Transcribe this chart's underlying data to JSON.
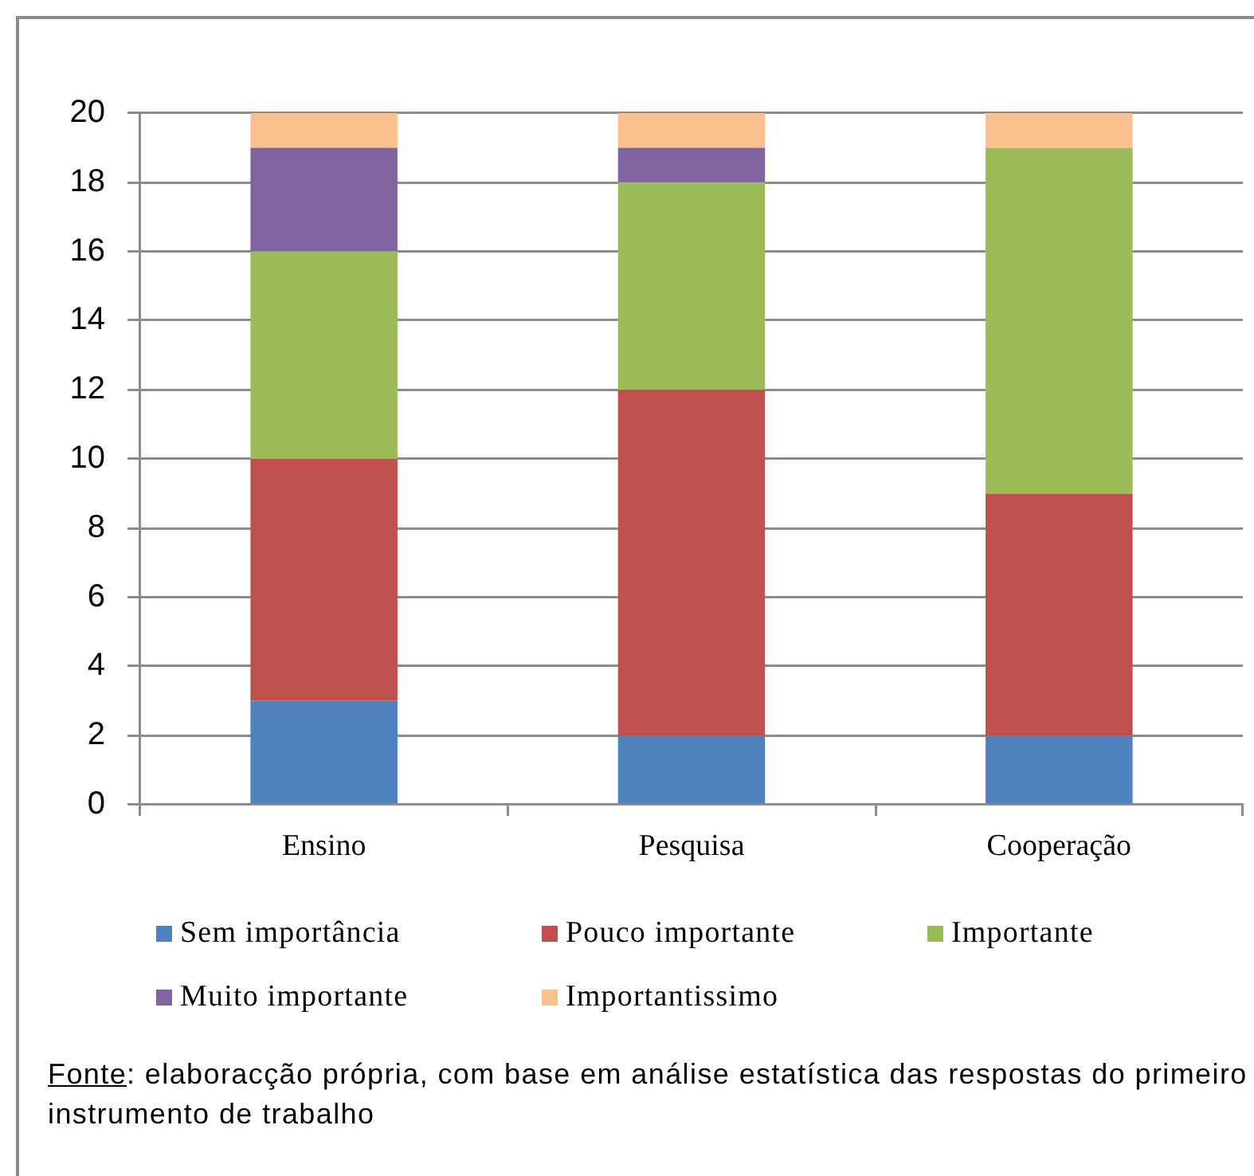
{
  "chart_data": {
    "type": "bar",
    "stacked": true,
    "categories": [
      "Ensino",
      "Pesquisa",
      "Cooperação"
    ],
    "series": [
      {
        "name": "Sem importância",
        "color": "#4f81bd",
        "values": [
          3,
          2,
          2
        ]
      },
      {
        "name": "Pouco importante",
        "color": "#c0504d",
        "values": [
          7,
          10,
          7
        ]
      },
      {
        "name": "Importante",
        "color": "#9bbb59",
        "values": [
          6,
          6,
          10
        ]
      },
      {
        "name": "Muito importante",
        "color": "#8064a2",
        "values": [
          3,
          1,
          0
        ]
      },
      {
        "name": "Importantissimo",
        "color": "#fac090",
        "values": [
          1,
          1,
          1
        ]
      }
    ],
    "ylim": [
      0,
      20
    ],
    "yticks": [
      0,
      2,
      4,
      6,
      8,
      10,
      12,
      14,
      16,
      18,
      20
    ],
    "grid": "y",
    "legend": "bottom",
    "annotations": [
      "Fonte: elaboracção própria, com base em análise estatística das respostas do primeiro instrumento de trabalho"
    ]
  }
}
